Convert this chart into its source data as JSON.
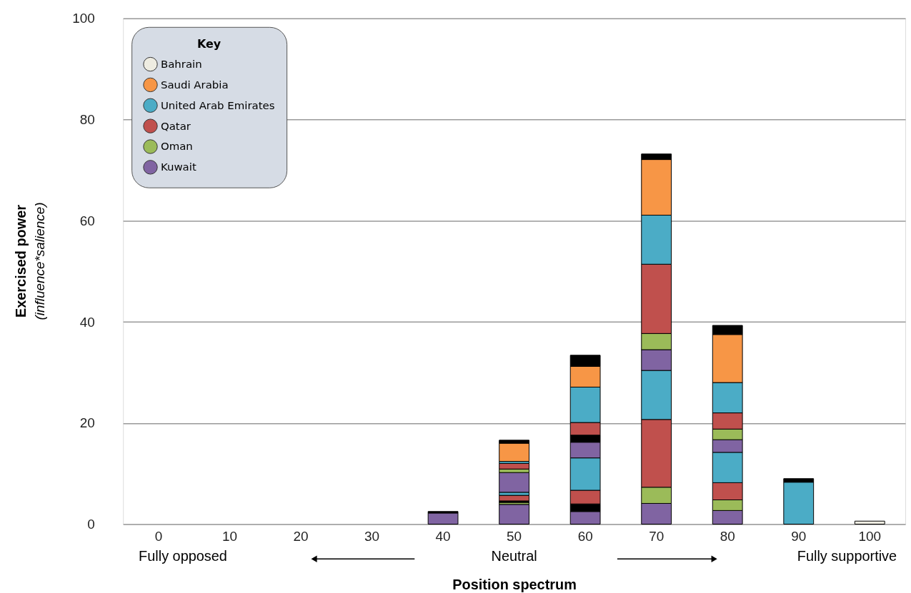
{
  "chart_data": {
    "type": "bar",
    "stacked": true,
    "xlabel": "Position spectrum",
    "ylabel": "Exercised power\n(influence*salience)",
    "legend_title": "Key",
    "legend": "top left",
    "grid": "y",
    "categories": [
      "0",
      "10",
      "20",
      "30",
      "40",
      "50",
      "60",
      "70",
      "80",
      "90",
      "100"
    ],
    "ylim": [
      0,
      100
    ],
    "yticks": [
      0,
      20,
      40,
      60,
      80,
      100
    ],
    "annotations": [
      "Fully opposed",
      "Neutral",
      "Fully supportive"
    ],
    "series": [
      {
        "color": "#8064a2",
        "values": [
          null,
          null,
          null,
          null,
          2.2,
          3.9,
          2.5,
          4.1,
          2.7,
          null,
          null
        ]
      },
      {
        "color": "#9bbb59",
        "values": [
          null,
          null,
          null,
          null,
          null,
          0.4,
          null,
          3.2,
          2.1,
          null,
          null
        ]
      },
      {
        "color": "#000000",
        "values": [
          null,
          null,
          null,
          null,
          null,
          0.3,
          1.5,
          null,
          null,
          null,
          null
        ]
      },
      {
        "color": "#c0504d",
        "values": [
          null,
          null,
          null,
          null,
          null,
          1.1,
          2.7,
          13.4,
          3.4,
          null,
          null
        ]
      },
      {
        "color": "#4bacc6",
        "values": [
          null,
          null,
          null,
          null,
          null,
          0.6,
          6.4,
          9.7,
          6.0,
          8.3,
          null
        ]
      },
      {
        "name": "Kuwait",
        "color": "#8064a2",
        "values": [
          null,
          null,
          null,
          null,
          null,
          3.9,
          3.1,
          4.1,
          2.5,
          null,
          null
        ]
      },
      {
        "name": "Oman",
        "color": "#9bbb59",
        "values": [
          null,
          null,
          null,
          null,
          null,
          0.7,
          null,
          3.2,
          2.1,
          null,
          null
        ]
      },
      {
        "color": "#000000",
        "values": [
          null,
          null,
          null,
          null,
          null,
          null,
          1.4,
          null,
          null,
          null,
          null
        ]
      },
      {
        "name": "Qatar",
        "color": "#c0504d",
        "values": [
          null,
          null,
          null,
          null,
          null,
          1.1,
          2.5,
          13.7,
          3.2,
          null,
          null
        ]
      },
      {
        "name": "United Arab Emirates",
        "color": "#4bacc6",
        "values": [
          null,
          null,
          null,
          null,
          null,
          0.4,
          7.0,
          9.7,
          6.0,
          null,
          null
        ]
      },
      {
        "name": "Saudi Arabia",
        "color": "#f79646",
        "values": [
          null,
          null,
          null,
          null,
          null,
          3.6,
          4.1,
          11.0,
          9.5,
          null,
          null
        ]
      },
      {
        "color": "#000000",
        "values": [
          null,
          null,
          null,
          null,
          0.3,
          0.6,
          2.2,
          1.1,
          1.8,
          0.7,
          null
        ]
      },
      {
        "name": "Bahrain",
        "color": "#eeece1",
        "values": [
          null,
          null,
          null,
          null,
          null,
          null,
          null,
          null,
          null,
          null,
          0.6
        ]
      }
    ]
  }
}
